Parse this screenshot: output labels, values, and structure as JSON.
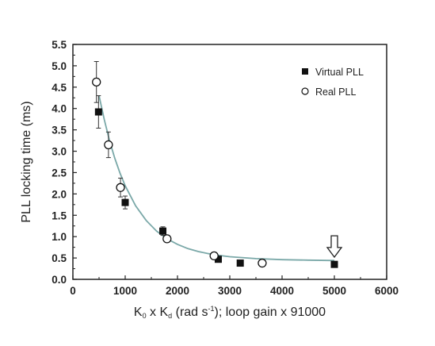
{
  "chart_data": {
    "type": "scatter",
    "xlabel_parts": [
      "K",
      "0",
      " x K",
      "d",
      " (rad s",
      "-1",
      ");  loop gain x 91000"
    ],
    "ylabel": "PLL locking time (ms)",
    "xlim": [
      0,
      6000
    ],
    "ylim": [
      0.0,
      5.5
    ],
    "xticks": [
      0,
      1000,
      2000,
      3000,
      4000,
      5000,
      6000
    ],
    "xtick_labels": [
      "0",
      "1000",
      "2000",
      "3000",
      "4000",
      "5000",
      "6000"
    ],
    "yticks": [
      0.0,
      0.5,
      1.0,
      1.5,
      2.0,
      2.5,
      3.0,
      3.5,
      4.0,
      4.5,
      5.0,
      5.5
    ],
    "ytick_labels": [
      "0.0",
      "0.5",
      "1.0",
      "1.5",
      "2.0",
      "2.5",
      "3.0",
      "3.5",
      "4.0",
      "4.5",
      "5.0",
      "5.5"
    ],
    "legend_position": "top-right",
    "series": [
      {
        "name": "Virtual PLL",
        "marker": "filled-square",
        "color": "#111111",
        "points": [
          {
            "x": 490,
            "y": 3.92,
            "err": 0.38
          },
          {
            "x": 1000,
            "y": 1.8,
            "err": 0.15
          },
          {
            "x": 1720,
            "y": 1.13,
            "err": 0.1
          },
          {
            "x": 2780,
            "y": 0.47,
            "err": 0
          },
          {
            "x": 3200,
            "y": 0.38,
            "err": 0
          },
          {
            "x": 5000,
            "y": 0.35,
            "err": 0
          }
        ]
      },
      {
        "name": "Real PLL",
        "marker": "open-circle",
        "color": "#111111",
        "points": [
          {
            "x": 450,
            "y": 4.62,
            "err": 0.48
          },
          {
            "x": 680,
            "y": 3.15,
            "err": 0.3
          },
          {
            "x": 910,
            "y": 2.15,
            "err": 0.22
          },
          {
            "x": 1800,
            "y": 0.95,
            "err": 0.08
          },
          {
            "x": 2700,
            "y": 0.55,
            "err": 0.05
          },
          {
            "x": 3620,
            "y": 0.38,
            "err": 0.06
          }
        ]
      }
    ],
    "fit_curve": {
      "color": "#7aa8a8",
      "points": [
        [
          500,
          4.3
        ],
        [
          600,
          3.74
        ],
        [
          700,
          3.25
        ],
        [
          800,
          2.84
        ],
        [
          900,
          2.49
        ],
        [
          1000,
          2.19
        ],
        [
          1200,
          1.72
        ],
        [
          1400,
          1.38
        ],
        [
          1600,
          1.13
        ],
        [
          1800,
          0.95
        ],
        [
          2000,
          0.82
        ],
        [
          2200,
          0.72
        ],
        [
          2400,
          0.65
        ],
        [
          2600,
          0.6
        ],
        [
          2800,
          0.56
        ],
        [
          3000,
          0.53
        ],
        [
          3500,
          0.485
        ],
        [
          4000,
          0.46
        ],
        [
          4500,
          0.45
        ],
        [
          5000,
          0.44
        ]
      ]
    },
    "annotation_arrow": {
      "x": 5000,
      "y_top": 1.02,
      "y_bottom": 0.52
    }
  }
}
